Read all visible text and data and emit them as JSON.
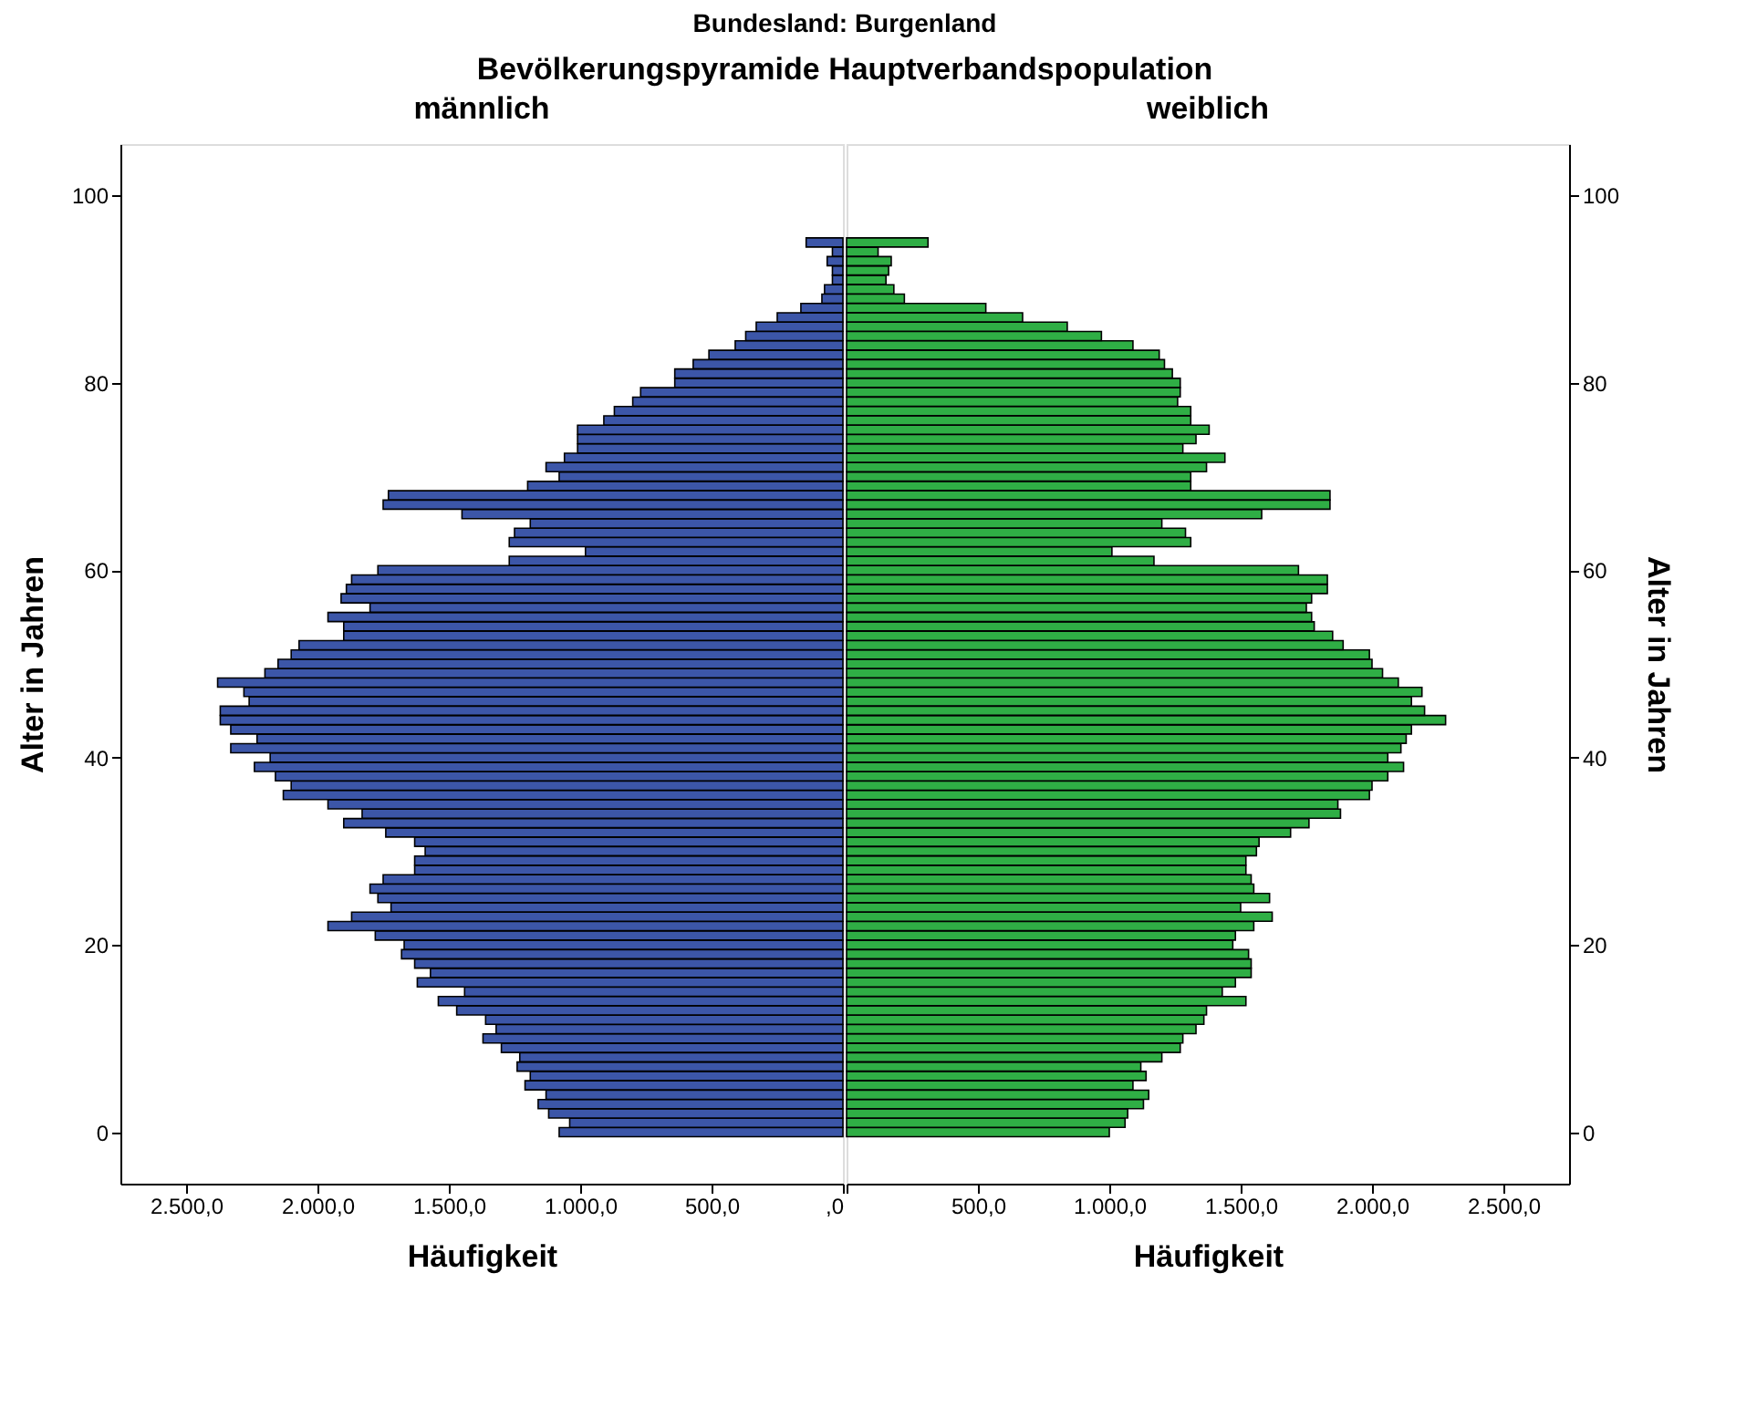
{
  "chart_data": [
    {
      "type": "bar",
      "orientation": "horizontal",
      "title": "Bundesland: Burgenland",
      "subtitle": "Bevölkerungspyramide Hauptverbandspopulation",
      "xlabel": "Häufigkeit",
      "ylabel": "Alter in Jahren",
      "grid": false,
      "x": [
        0,
        1,
        2,
        3,
        4,
        5,
        6,
        7,
        8,
        9,
        10,
        11,
        12,
        13,
        14,
        15,
        16,
        17,
        18,
        19,
        20,
        21,
        22,
        23,
        24,
        25,
        26,
        27,
        28,
        29,
        30,
        31,
        32,
        33,
        34,
        35,
        36,
        37,
        38,
        39,
        40,
        41,
        42,
        43,
        44,
        45,
        46,
        47,
        48,
        49,
        50,
        51,
        52,
        53,
        54,
        55,
        56,
        57,
        58,
        59,
        60,
        61,
        62,
        63,
        64,
        65,
        66,
        67,
        68,
        69,
        70,
        71,
        72,
        73,
        74,
        75,
        76,
        77,
        78,
        79,
        80,
        81,
        82,
        83,
        84,
        85,
        86,
        87,
        88,
        89,
        90,
        91,
        92,
        93,
        94,
        95
      ],
      "xlim": [
        2750,
        0
      ],
      "ylim": [
        -5.5,
        105.5
      ],
      "xticks": [
        {
          "value": 2500,
          "label": "2.500,0"
        },
        {
          "value": 2000,
          "label": "2.000,0"
        },
        {
          "value": 1500,
          "label": "1.500,0"
        },
        {
          "value": 1000,
          "label": "1.000,0"
        },
        {
          "value": 500,
          "label": "500,0"
        },
        {
          "value": 0,
          "label": ",0"
        }
      ],
      "yticks": [
        0,
        20,
        40,
        60,
        80,
        100
      ],
      "series": [
        {
          "name": "männlich",
          "color": "#3c56a8",
          "values": [
            1080,
            1040,
            1120,
            1160,
            1130,
            1210,
            1190,
            1240,
            1230,
            1300,
            1370,
            1320,
            1360,
            1470,
            1540,
            1440,
            1620,
            1570,
            1630,
            1680,
            1670,
            1780,
            1960,
            1870,
            1720,
            1770,
            1800,
            1750,
            1630,
            1630,
            1590,
            1630,
            1740,
            1900,
            1830,
            1960,
            2130,
            2100,
            2160,
            2240,
            2180,
            2330,
            2230,
            2330,
            2370,
            2370,
            2260,
            2280,
            2380,
            2200,
            2150,
            2100,
            2070,
            1900,
            1900,
            1960,
            1800,
            1910,
            1890,
            1870,
            1770,
            1270,
            980,
            1270,
            1250,
            1190,
            1450,
            1750,
            1730,
            1200,
            1080,
            1130,
            1060,
            1010,
            1010,
            1010,
            910,
            870,
            800,
            770,
            640,
            640,
            570,
            510,
            410,
            370,
            330,
            250,
            160,
            80,
            70,
            40,
            40,
            60,
            40,
            140
          ]
        }
      ]
    },
    {
      "type": "bar",
      "orientation": "horizontal",
      "xlabel": "Häufigkeit",
      "ylabel": "Alter in Jahren",
      "grid": false,
      "x": [
        0,
        1,
        2,
        3,
        4,
        5,
        6,
        7,
        8,
        9,
        10,
        11,
        12,
        13,
        14,
        15,
        16,
        17,
        18,
        19,
        20,
        21,
        22,
        23,
        24,
        25,
        26,
        27,
        28,
        29,
        30,
        31,
        32,
        33,
        34,
        35,
        36,
        37,
        38,
        39,
        40,
        41,
        42,
        43,
        44,
        45,
        46,
        47,
        48,
        49,
        50,
        51,
        52,
        53,
        54,
        55,
        56,
        57,
        58,
        59,
        60,
        61,
        62,
        63,
        64,
        65,
        66,
        67,
        68,
        69,
        70,
        71,
        72,
        73,
        74,
        75,
        76,
        77,
        78,
        79,
        80,
        81,
        82,
        83,
        84,
        85,
        86,
        87,
        88,
        89,
        90,
        91,
        92,
        93,
        94,
        95
      ],
      "xlim": [
        0,
        2750
      ],
      "ylim": [
        -5.5,
        105.5
      ],
      "xticks": [
        {
          "value": 0,
          "label": null
        },
        {
          "value": 500,
          "label": "500,0"
        },
        {
          "value": 1000,
          "label": "1.000,0"
        },
        {
          "value": 1500,
          "label": "1.500,0"
        },
        {
          "value": 2000,
          "label": "2.000,0"
        },
        {
          "value": 2500,
          "label": "2.500,0"
        }
      ],
      "yticks": [
        0,
        20,
        40,
        60,
        80,
        100
      ],
      "series": [
        {
          "name": "weiblich",
          "color": "#2fae45",
          "values": [
            1000,
            1060,
            1070,
            1130,
            1150,
            1090,
            1140,
            1120,
            1200,
            1270,
            1280,
            1330,
            1360,
            1370,
            1520,
            1430,
            1480,
            1540,
            1540,
            1530,
            1470,
            1480,
            1550,
            1620,
            1500,
            1610,
            1550,
            1540,
            1520,
            1520,
            1560,
            1570,
            1690,
            1760,
            1880,
            1870,
            1990,
            2000,
            2060,
            2120,
            2060,
            2110,
            2130,
            2150,
            2280,
            2200,
            2150,
            2190,
            2100,
            2040,
            2000,
            1990,
            1890,
            1850,
            1780,
            1770,
            1750,
            1770,
            1830,
            1830,
            1720,
            1170,
            1010,
            1310,
            1290,
            1200,
            1580,
            1840,
            1840,
            1310,
            1310,
            1370,
            1440,
            1280,
            1330,
            1380,
            1310,
            1310,
            1260,
            1270,
            1270,
            1240,
            1210,
            1190,
            1090,
            970,
            840,
            670,
            530,
            220,
            180,
            150,
            160,
            170,
            120,
            310
          ]
        }
      ]
    }
  ]
}
